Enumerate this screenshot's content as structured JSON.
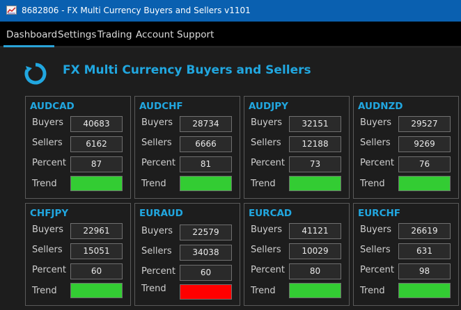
{
  "window": {
    "title": "8682806 - FX Multi Currency Buyers and Sellers v1101"
  },
  "menu": {
    "tabs": [
      {
        "label": "Dashboard",
        "active": true
      },
      {
        "label": "Settings",
        "active": false
      },
      {
        "label": "Trading",
        "active": false
      },
      {
        "label": "Account",
        "active": false
      },
      {
        "label": "Support",
        "active": false
      }
    ]
  },
  "header": {
    "title": "FX Multi Currency Buyers and Sellers",
    "logo_icon": "circular-arrow-icon"
  },
  "labels": {
    "buyers": "Buyers",
    "sellers": "Sellers",
    "percent": "Percent",
    "trend": "Trend"
  },
  "colors": {
    "accent": "#21a7e0",
    "titlebar": "#0a60b0",
    "trend_up": "#33cc33",
    "trend_down": "#ff0000"
  },
  "panels": [
    {
      "pair": "AUDCAD",
      "buyers": "40683",
      "sellers": "6162",
      "percent": "87",
      "trend": "up"
    },
    {
      "pair": "AUDCHF",
      "buyers": "28734",
      "sellers": "6666",
      "percent": "81",
      "trend": "up"
    },
    {
      "pair": "AUDJPY",
      "buyers": "32151",
      "sellers": "12188",
      "percent": "73",
      "trend": "up"
    },
    {
      "pair": "AUDNZD",
      "buyers": "29527",
      "sellers": "9269",
      "percent": "76",
      "trend": "up"
    },
    {
      "pair": "CHFJPY",
      "buyers": "22961",
      "sellers": "15051",
      "percent": "60",
      "trend": "up"
    },
    {
      "pair": "EURAUD",
      "buyers": "22579",
      "sellers": "34038",
      "percent": "60",
      "trend": "down"
    },
    {
      "pair": "EURCAD",
      "buyers": "41121",
      "sellers": "10029",
      "percent": "80",
      "trend": "up"
    },
    {
      "pair": "EURCHF",
      "buyers": "26619",
      "sellers": "631",
      "percent": "98",
      "trend": "up"
    }
  ]
}
